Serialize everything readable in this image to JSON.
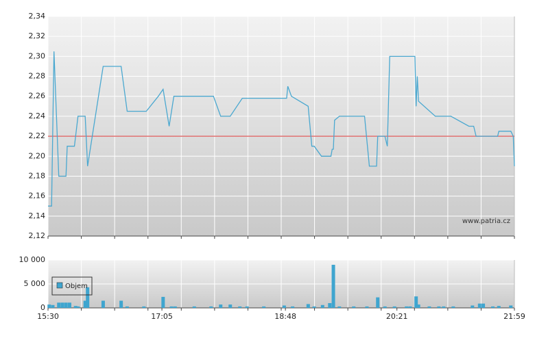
{
  "chart_data": [
    {
      "type": "line",
      "color": "#4aa8d0",
      "x": [
        "15:30",
        "15:33",
        "15:35",
        "15:39",
        "15:45",
        "15:46",
        "15:52",
        "15:55",
        "16:01",
        "16:03",
        "16:16",
        "16:31",
        "16:36",
        "16:52",
        "17:02",
        "17:06",
        "17:11",
        "17:15",
        "17:48",
        "17:54",
        "18:02",
        "18:12",
        "18:49",
        "18:50",
        "18:53",
        "19:07",
        "19:10",
        "19:12",
        "19:18",
        "19:26",
        "19:27",
        "19:28",
        "19:29",
        "19:33",
        "19:54",
        "19:58",
        "20:04",
        "20:05",
        "20:11",
        "20:13",
        "20:15",
        "20:36",
        "20:37",
        "20:38",
        "20:39",
        "20:53",
        "21:06",
        "21:21",
        "21:25",
        "21:27",
        "21:45",
        "21:46",
        "21:56",
        "21:58",
        "21:59"
      ],
      "values": [
        2.15,
        2.15,
        2.305,
        2.18,
        2.18,
        2.21,
        2.21,
        2.24,
        2.24,
        2.19,
        2.29,
        2.29,
        2.245,
        2.245,
        2.26,
        2.267,
        2.23,
        2.26,
        2.26,
        2.24,
        2.24,
        2.258,
        2.258,
        2.27,
        2.26,
        2.25,
        2.21,
        2.21,
        2.2,
        2.2,
        2.207,
        2.207,
        2.236,
        2.24,
        2.24,
        2.19,
        2.19,
        2.22,
        2.22,
        2.21,
        2.3,
        2.3,
        2.25,
        2.28,
        2.255,
        2.24,
        2.24,
        2.23,
        2.23,
        2.22,
        2.22,
        2.225,
        2.225,
        2.22,
        2.19
      ],
      "xlim": [
        "15:30",
        "21:59"
      ],
      "ylim": [
        2.12,
        2.34
      ],
      "yticks": [
        {
          "value": 2.12,
          "label": "2,12"
        },
        {
          "value": 2.14,
          "label": "2,14"
        },
        {
          "value": 2.16,
          "label": "2,16"
        },
        {
          "value": 2.18,
          "label": "2,18"
        },
        {
          "value": 2.2,
          "label": "2,20"
        },
        {
          "value": 2.22,
          "label": "2,22"
        },
        {
          "value": 2.24,
          "label": "2,24"
        },
        {
          "value": 2.26,
          "label": "2,26"
        },
        {
          "value": 2.28,
          "label": "2,28"
        },
        {
          "value": 2.3,
          "label": "2,30"
        },
        {
          "value": 2.32,
          "label": "2,32"
        },
        {
          "value": 2.34,
          "label": "2,34"
        }
      ],
      "reference_line": {
        "value": 2.22,
        "color": "#e07070"
      },
      "annotation": "www.patria.cz",
      "grid": true
    },
    {
      "type": "bar",
      "x": [
        "15:31",
        "15:34",
        "15:39",
        "15:42",
        "15:45",
        "15:48",
        "15:53",
        "15:55",
        "16:01",
        "16:03",
        "16:16",
        "16:31",
        "16:36",
        "16:50",
        "17:06",
        "17:13",
        "17:16",
        "17:32",
        "17:46",
        "17:54",
        "18:02",
        "18:10",
        "18:16",
        "18:30",
        "18:47",
        "18:54",
        "19:07",
        "19:12",
        "19:19",
        "19:25",
        "19:28",
        "19:33",
        "19:45",
        "19:56",
        "20:05",
        "20:11",
        "20:19",
        "20:29",
        "20:32",
        "20:37",
        "20:39",
        "20:48",
        "20:56",
        "21:00",
        "21:08",
        "21:24",
        "21:30",
        "21:33",
        "21:41",
        "21:46",
        "21:56"
      ],
      "series": [
        {
          "name": "Objem",
          "color": "#3fa5cf",
          "values": [
            700,
            600,
            1100,
            1100,
            1100,
            1100,
            400,
            300,
            1500,
            4300,
            1500,
            1500,
            300,
            300,
            2300,
            300,
            300,
            300,
            300,
            700,
            700,
            300,
            300,
            300,
            500,
            300,
            800,
            300,
            600,
            1000,
            9000,
            300,
            300,
            300,
            2200,
            300,
            300,
            300,
            300,
            2400,
            700,
            300,
            300,
            300,
            300,
            500,
            900,
            900,
            300,
            400,
            500
          ]
        }
      ],
      "xlim": [
        "15:30",
        "21:59"
      ],
      "xticks": [
        "15:30",
        "17:05",
        "18:48",
        "20:21",
        "21:59"
      ],
      "ylim": [
        0,
        10000
      ],
      "yticks": [
        0,
        {
          "value": 5000,
          "label": "5 000"
        },
        {
          "value": 10000,
          "label": "10 000"
        }
      ],
      "grid": true
    }
  ]
}
